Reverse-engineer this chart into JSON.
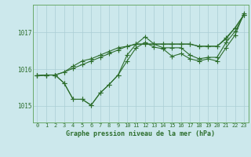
{
  "title": "Graphe pression niveau de la mer (hPa)",
  "yticks": [
    1015,
    1016,
    1017
  ],
  "ylim": [
    1014.55,
    1017.75
  ],
  "xlim": [
    -0.5,
    23.5
  ],
  "bg_color": "#cce8ec",
  "grid_color": "#aacdd4",
  "line_color": "#2d6e2d",
  "line1_x": [
    0,
    1,
    2,
    3,
    4,
    5,
    6,
    7,
    8,
    9,
    10,
    11,
    12,
    13,
    14,
    15,
    16,
    17,
    18,
    19,
    20,
    21,
    22,
    23
  ],
  "line1_y": [
    1015.82,
    1015.84,
    1015.84,
    1015.62,
    1015.18,
    1015.18,
    1015.02,
    1015.35,
    1015.58,
    1015.84,
    1016.22,
    1016.58,
    1016.72,
    1016.6,
    1016.55,
    1016.35,
    1016.42,
    1016.28,
    1016.22,
    1016.28,
    1016.22,
    1016.58,
    1016.92,
    1017.52
  ],
  "line2_x": [
    0,
    1,
    2,
    3,
    4,
    5,
    6,
    7,
    8,
    9,
    10,
    11,
    12,
    13,
    14,
    15,
    16,
    17,
    18,
    19,
    20,
    21,
    22,
    23
  ],
  "line2_y": [
    1015.82,
    1015.84,
    1015.84,
    1015.62,
    1015.18,
    1015.18,
    1015.02,
    1015.35,
    1015.58,
    1015.84,
    1016.38,
    1016.68,
    1016.88,
    1016.68,
    1016.58,
    1016.58,
    1016.58,
    1016.38,
    1016.28,
    1016.32,
    1016.32,
    1016.72,
    1017.02,
    1017.48
  ],
  "line3_x": [
    0,
    1,
    2,
    3,
    4,
    5,
    6,
    7,
    8,
    9,
    10,
    11,
    12,
    13,
    14,
    15,
    16,
    17,
    18,
    19,
    20,
    21,
    22,
    23
  ],
  "line3_y": [
    1015.82,
    1015.84,
    1015.84,
    1015.92,
    1016.08,
    1016.22,
    1016.28,
    1016.38,
    1016.48,
    1016.58,
    1016.62,
    1016.68,
    1016.68,
    1016.68,
    1016.68,
    1016.68,
    1016.68,
    1016.68,
    1016.62,
    1016.62,
    1016.62,
    1016.82,
    1017.12,
    1017.48
  ],
  "line4_x": [
    0,
    1,
    2,
    3,
    4,
    5,
    6,
    7,
    8,
    9,
    10,
    11,
    12,
    13,
    14,
    15,
    16,
    17,
    18,
    19,
    20,
    21,
    22,
    23
  ],
  "line4_y": [
    1015.82,
    1015.84,
    1015.84,
    1015.92,
    1016.02,
    1016.12,
    1016.22,
    1016.32,
    1016.42,
    1016.52,
    1016.62,
    1016.68,
    1016.68,
    1016.68,
    1016.68,
    1016.68,
    1016.68,
    1016.68,
    1016.62,
    1016.62,
    1016.62,
    1016.85,
    1017.12,
    1017.48
  ]
}
